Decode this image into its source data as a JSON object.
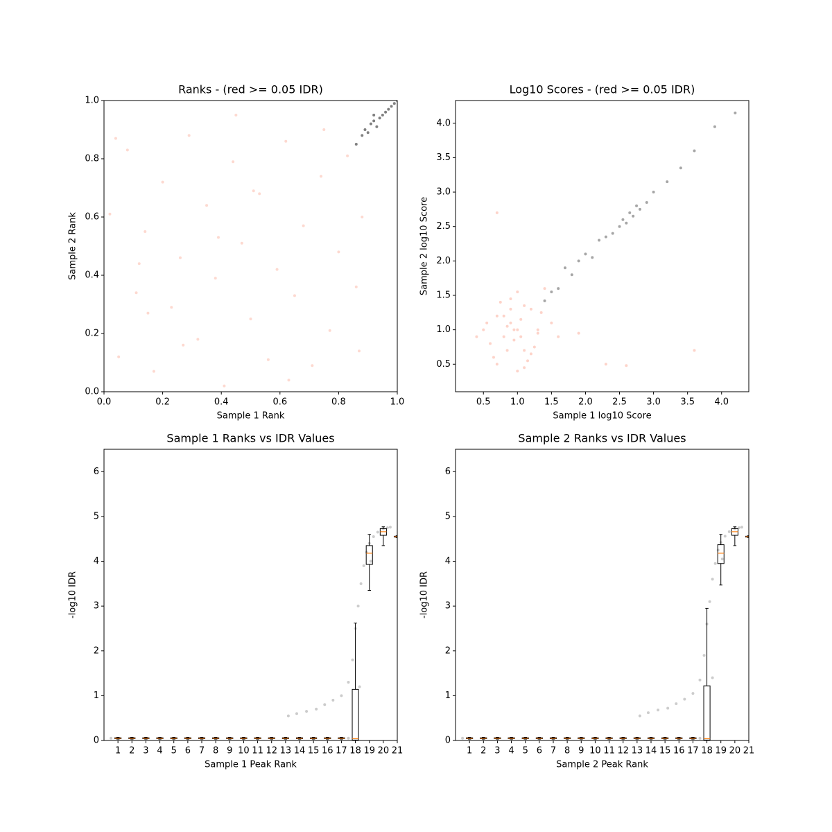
{
  "chart_data": [
    {
      "type": "scatter",
      "title": "Ranks - (red >= 0.05 IDR)",
      "xlabel": "Sample 1 Rank",
      "ylabel": "Sample 2 Rank",
      "xlim": [
        0,
        1
      ],
      "ylim": [
        0,
        1
      ],
      "xticks": [
        {
          "value": 0,
          "label": "0.0"
        },
        0.2,
        0.4,
        0.6,
        0.8,
        {
          "value": 1,
          "label": "1.0"
        }
      ],
      "yticks": [
        {
          "value": 0,
          "label": "0.0"
        },
        0.2,
        0.4,
        0.6,
        0.8,
        {
          "value": 1,
          "label": "1.0"
        }
      ],
      "series": [
        {
          "color": "#fa8064",
          "alpha": 0.3,
          "x": [
            0.02,
            0.05,
            0.08,
            0.11,
            0.14,
            0.17,
            0.2,
            0.23,
            0.26,
            0.29,
            0.32,
            0.35,
            0.38,
            0.41,
            0.44,
            0.47,
            0.5,
            0.53,
            0.56,
            0.59,
            0.62,
            0.65,
            0.68,
            0.71,
            0.74,
            0.77,
            0.8,
            0.83,
            0.86,
            0.88,
            0.04,
            0.15,
            0.27,
            0.39,
            0.51,
            0.63,
            0.75,
            0.87,
            0.12,
            0.45
          ],
          "y": [
            0.61,
            0.12,
            0.83,
            0.34,
            0.55,
            0.07,
            0.72,
            0.29,
            0.46,
            0.88,
            0.18,
            0.64,
            0.39,
            0.02,
            0.79,
            0.51,
            0.25,
            0.68,
            0.11,
            0.42,
            0.86,
            0.33,
            0.57,
            0.09,
            0.74,
            0.21,
            0.48,
            0.81,
            0.36,
            0.6,
            0.87,
            0.27,
            0.16,
            0.53,
            0.69,
            0.04,
            0.9,
            0.14,
            0.44,
            0.95
          ]
        },
        {
          "color": "#000000",
          "alpha": 0.5,
          "x": [
            0.86,
            0.88,
            0.89,
            0.9,
            0.91,
            0.92,
            0.93,
            0.94,
            0.95,
            0.96,
            0.97,
            0.98,
            0.99,
            1.0,
            0.92
          ],
          "y": [
            0.85,
            0.88,
            0.9,
            0.89,
            0.92,
            0.93,
            0.91,
            0.94,
            0.95,
            0.96,
            0.97,
            0.98,
            0.99,
            1.0,
            0.95
          ]
        }
      ]
    },
    {
      "type": "scatter",
      "title": "Log10 Scores - (red >= 0.05 IDR)",
      "xlabel": "Sample 1 log10 Score",
      "ylabel": "Sample 2 log10 Score",
      "xlim": [
        0.09,
        4.4
      ],
      "ylim": [
        0.1,
        4.33
      ],
      "xticks": [
        0.5,
        {
          "value": 1,
          "label": "1.0"
        },
        1.5,
        {
          "value": 2,
          "label": "2.0"
        },
        2.5,
        {
          "value": 3,
          "label": "3.0"
        },
        3.5,
        {
          "value": 4,
          "label": "4.0"
        }
      ],
      "yticks": [
        0.5,
        {
          "value": 1,
          "label": "1.0"
        },
        1.5,
        {
          "value": 2,
          "label": "2.0"
        },
        2.5,
        {
          "value": 3,
          "label": "3.0"
        },
        3.5,
        {
          "value": 4,
          "label": "4.0"
        }
      ],
      "series": [
        {
          "color": "#fa8064",
          "alpha": 0.35,
          "x": [
            0.5,
            0.6,
            0.7,
            0.8,
            0.9,
            1.0,
            1.1,
            1.2,
            1.3,
            0.65,
            0.75,
            0.85,
            0.95,
            1.05,
            1.15,
            1.25,
            1.35,
            0.55,
            0.7,
            0.9,
            1.0,
            1.1,
            1.3,
            0.8,
            1.2,
            0.4,
            1.5,
            0.95,
            1.05,
            0.85,
            1.6,
            2.3,
            3.6,
            0.7,
            1.4,
            0.9,
            1.1,
            1.0,
            2.6,
            1.9
          ],
          "y": [
            1.0,
            0.8,
            1.2,
            0.9,
            1.1,
            1.0,
            0.7,
            1.3,
            0.95,
            0.6,
            1.4,
            1.05,
            0.85,
            1.15,
            0.55,
            0.75,
            1.25,
            1.1,
            0.5,
            1.45,
            0.4,
            1.35,
            1.0,
            1.2,
            0.65,
            0.9,
            1.1,
            1.0,
            0.9,
            0.7,
            0.9,
            0.5,
            0.7,
            2.7,
            1.6,
            1.3,
            0.45,
            1.55,
            0.48,
            0.95
          ]
        },
        {
          "color": "#000000",
          "alpha": 0.35,
          "x": [
            1.4,
            1.5,
            1.6,
            1.7,
            1.8,
            1.9,
            2.0,
            2.1,
            2.2,
            2.3,
            2.4,
            2.5,
            2.55,
            2.6,
            2.65,
            2.7,
            2.75,
            2.8,
            2.9,
            3.0,
            3.2,
            3.4,
            3.6,
            3.9,
            4.2
          ],
          "y": [
            1.42,
            1.55,
            1.6,
            1.9,
            1.8,
            2.0,
            2.1,
            2.05,
            2.3,
            2.35,
            2.4,
            2.5,
            2.6,
            2.55,
            2.7,
            2.65,
            2.8,
            2.75,
            2.85,
            3.0,
            3.15,
            3.35,
            3.6,
            3.95,
            4.15
          ]
        }
      ]
    },
    {
      "type": "box",
      "title": "Sample 1 Ranks vs IDR Values",
      "xlabel": "Sample 1 Peak Rank",
      "ylabel": "-log10 IDR",
      "xlim": [
        0,
        21
      ],
      "ylim": [
        0,
        6.5
      ],
      "xticks": [
        1,
        2,
        3,
        4,
        5,
        6,
        7,
        8,
        9,
        10,
        11,
        12,
        13,
        14,
        15,
        16,
        17,
        18,
        19,
        20,
        21
      ],
      "yticks": [
        0,
        1,
        2,
        3,
        4,
        5,
        6
      ],
      "median_color": "#ff7f0e",
      "series": [
        {
          "color": "#000000",
          "alpha": 0.2,
          "x": [
            0.5,
            2,
            4,
            6,
            8,
            10,
            12,
            14,
            16,
            17.5,
            13.2,
            13.8,
            14.5,
            15.2,
            15.8,
            16.4,
            17.0,
            17.5,
            17.8,
            18.0,
            18.2,
            18.4,
            18.6,
            18.8,
            19.0,
            19.3,
            19.6,
            20.0,
            20.3,
            20.5,
            18.3,
            19.1,
            21.0
          ],
          "y": [
            0.05,
            0.05,
            0.05,
            0.05,
            0.05,
            0.05,
            0.05,
            0.05,
            0.05,
            0.05,
            0.55,
            0.6,
            0.65,
            0.7,
            0.8,
            0.9,
            1.0,
            1.3,
            1.8,
            2.5,
            3.0,
            3.5,
            3.9,
            4.2,
            4.4,
            4.55,
            4.65,
            4.72,
            4.75,
            4.76,
            1.2,
            4.0,
            4.55
          ]
        }
      ],
      "boxes": [
        {
          "position": 1,
          "whislo": 0.03,
          "q1": 0.04,
          "med": 0.05,
          "q3": 0.06,
          "whishi": 0.07
        },
        {
          "position": 2,
          "whislo": 0.03,
          "q1": 0.04,
          "med": 0.05,
          "q3": 0.06,
          "whishi": 0.07
        },
        {
          "position": 3,
          "whislo": 0.03,
          "q1": 0.04,
          "med": 0.05,
          "q3": 0.06,
          "whishi": 0.07
        },
        {
          "position": 4,
          "whislo": 0.03,
          "q1": 0.04,
          "med": 0.05,
          "q3": 0.06,
          "whishi": 0.07
        },
        {
          "position": 5,
          "whislo": 0.03,
          "q1": 0.04,
          "med": 0.05,
          "q3": 0.06,
          "whishi": 0.07
        },
        {
          "position": 6,
          "whislo": 0.03,
          "q1": 0.04,
          "med": 0.05,
          "q3": 0.06,
          "whishi": 0.07
        },
        {
          "position": 7,
          "whislo": 0.03,
          "q1": 0.04,
          "med": 0.05,
          "q3": 0.06,
          "whishi": 0.07
        },
        {
          "position": 8,
          "whislo": 0.03,
          "q1": 0.04,
          "med": 0.05,
          "q3": 0.06,
          "whishi": 0.07
        },
        {
          "position": 9,
          "whislo": 0.03,
          "q1": 0.04,
          "med": 0.05,
          "q3": 0.06,
          "whishi": 0.07
        },
        {
          "position": 10,
          "whislo": 0.03,
          "q1": 0.04,
          "med": 0.05,
          "q3": 0.06,
          "whishi": 0.07
        },
        {
          "position": 11,
          "whislo": 0.03,
          "q1": 0.04,
          "med": 0.05,
          "q3": 0.06,
          "whishi": 0.07
        },
        {
          "position": 12,
          "whislo": 0.03,
          "q1": 0.04,
          "med": 0.05,
          "q3": 0.06,
          "whishi": 0.07
        },
        {
          "position": 13,
          "whislo": 0.03,
          "q1": 0.04,
          "med": 0.05,
          "q3": 0.06,
          "whishi": 0.07
        },
        {
          "position": 14,
          "whislo": 0.03,
          "q1": 0.04,
          "med": 0.05,
          "q3": 0.06,
          "whishi": 0.07
        },
        {
          "position": 15,
          "whislo": 0.03,
          "q1": 0.04,
          "med": 0.05,
          "q3": 0.06,
          "whishi": 0.07
        },
        {
          "position": 16,
          "whislo": 0.03,
          "q1": 0.04,
          "med": 0.05,
          "q3": 0.06,
          "whishi": 0.07
        },
        {
          "position": 17,
          "whislo": 0.03,
          "q1": 0.04,
          "med": 0.05,
          "q3": 0.06,
          "whishi": 0.07
        },
        {
          "position": 18,
          "whislo": 0,
          "q1": 0.01,
          "med": 0.04,
          "q3": 1.14,
          "whishi": 2.62
        },
        {
          "position": 19,
          "whislo": 3.35,
          "q1": 3.93,
          "med": 4.18,
          "q3": 4.35,
          "whishi": 4.6
        },
        {
          "position": 20,
          "whislo": 4.35,
          "q1": 4.58,
          "med": 4.66,
          "q3": 4.73,
          "whishi": 4.77
        },
        {
          "position": 21,
          "whislo": 4.53,
          "q1": 4.54,
          "med": 4.55,
          "q3": 4.56,
          "whishi": 4.57
        }
      ]
    },
    {
      "type": "box",
      "title": "Sample 2 Ranks vs IDR Values",
      "xlabel": "Sample 2 Peak Rank",
      "ylabel": "-log10 IDR",
      "xlim": [
        0,
        21
      ],
      "ylim": [
        0,
        6.5
      ],
      "xticks": [
        1,
        2,
        3,
        4,
        5,
        6,
        7,
        8,
        9,
        10,
        11,
        12,
        13,
        14,
        15,
        16,
        17,
        18,
        19,
        20,
        21
      ],
      "yticks": [
        0,
        1,
        2,
        3,
        4,
        5,
        6
      ],
      "median_color": "#ff7f0e",
      "series": [
        {
          "color": "#000000",
          "alpha": 0.2,
          "x": [
            0.5,
            2,
            4,
            6,
            8,
            10,
            12,
            14,
            16,
            17.5,
            13.2,
            13.8,
            14.5,
            15.2,
            15.8,
            16.4,
            17.0,
            17.5,
            17.8,
            18.0,
            18.2,
            18.4,
            18.6,
            18.8,
            19.0,
            19.3,
            19.6,
            20.0,
            20.3,
            20.5,
            18.4,
            19.1,
            21.0
          ],
          "y": [
            0.05,
            0.05,
            0.05,
            0.05,
            0.05,
            0.05,
            0.05,
            0.05,
            0.05,
            0.05,
            0.55,
            0.62,
            0.68,
            0.72,
            0.82,
            0.92,
            1.05,
            1.35,
            1.9,
            2.6,
            3.1,
            3.6,
            3.95,
            4.25,
            4.42,
            4.56,
            4.66,
            4.72,
            4.75,
            4.76,
            1.4,
            4.05,
            4.55
          ]
        }
      ],
      "boxes": [
        {
          "position": 1,
          "whislo": 0.03,
          "q1": 0.04,
          "med": 0.05,
          "q3": 0.06,
          "whishi": 0.07
        },
        {
          "position": 2,
          "whislo": 0.03,
          "q1": 0.04,
          "med": 0.05,
          "q3": 0.06,
          "whishi": 0.07
        },
        {
          "position": 3,
          "whislo": 0.03,
          "q1": 0.04,
          "med": 0.05,
          "q3": 0.06,
          "whishi": 0.07
        },
        {
          "position": 4,
          "whislo": 0.03,
          "q1": 0.04,
          "med": 0.05,
          "q3": 0.06,
          "whishi": 0.07
        },
        {
          "position": 5,
          "whislo": 0.03,
          "q1": 0.04,
          "med": 0.05,
          "q3": 0.06,
          "whishi": 0.07
        },
        {
          "position": 6,
          "whislo": 0.03,
          "q1": 0.04,
          "med": 0.05,
          "q3": 0.06,
          "whishi": 0.07
        },
        {
          "position": 7,
          "whislo": 0.03,
          "q1": 0.04,
          "med": 0.05,
          "q3": 0.06,
          "whishi": 0.07
        },
        {
          "position": 8,
          "whislo": 0.03,
          "q1": 0.04,
          "med": 0.05,
          "q3": 0.06,
          "whishi": 0.07
        },
        {
          "position": 9,
          "whislo": 0.03,
          "q1": 0.04,
          "med": 0.05,
          "q3": 0.06,
          "whishi": 0.07
        },
        {
          "position": 10,
          "whislo": 0.03,
          "q1": 0.04,
          "med": 0.05,
          "q3": 0.06,
          "whishi": 0.07
        },
        {
          "position": 11,
          "whislo": 0.03,
          "q1": 0.04,
          "med": 0.05,
          "q3": 0.06,
          "whishi": 0.07
        },
        {
          "position": 12,
          "whislo": 0.03,
          "q1": 0.04,
          "med": 0.05,
          "q3": 0.06,
          "whishi": 0.07
        },
        {
          "position": 13,
          "whislo": 0.03,
          "q1": 0.04,
          "med": 0.05,
          "q3": 0.06,
          "whishi": 0.07
        },
        {
          "position": 14,
          "whislo": 0.03,
          "q1": 0.04,
          "med": 0.05,
          "q3": 0.06,
          "whishi": 0.07
        },
        {
          "position": 15,
          "whislo": 0.03,
          "q1": 0.04,
          "med": 0.05,
          "q3": 0.06,
          "whishi": 0.07
        },
        {
          "position": 16,
          "whislo": 0.03,
          "q1": 0.04,
          "med": 0.05,
          "q3": 0.06,
          "whishi": 0.07
        },
        {
          "position": 17,
          "whislo": 0.03,
          "q1": 0.04,
          "med": 0.05,
          "q3": 0.06,
          "whishi": 0.07
        },
        {
          "position": 18,
          "whislo": 0,
          "q1": 0.01,
          "med": 0.04,
          "q3": 1.22,
          "whishi": 2.95
        },
        {
          "position": 19,
          "whislo": 3.47,
          "q1": 3.95,
          "med": 4.18,
          "q3": 4.37,
          "whishi": 4.6
        },
        {
          "position": 20,
          "whislo": 4.35,
          "q1": 4.58,
          "med": 4.66,
          "q3": 4.73,
          "whishi": 4.77
        },
        {
          "position": 21,
          "whislo": 4.53,
          "q1": 4.54,
          "med": 4.55,
          "q3": 4.56,
          "whishi": 4.57
        }
      ]
    }
  ]
}
